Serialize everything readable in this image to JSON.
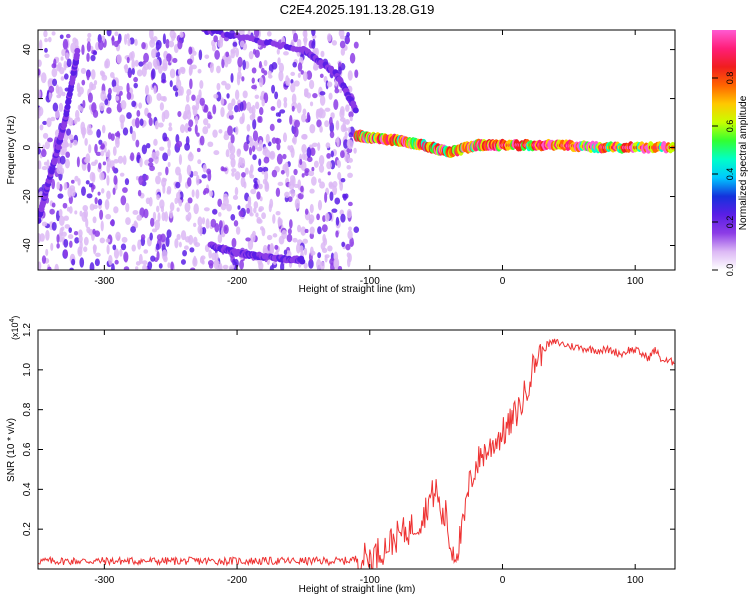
{
  "title": "C2E4.2025.191.13.28.G19",
  "chart_data": [
    {
      "type": "heatmap",
      "title": "C2E4.2025.191.13.28.G19",
      "xlabel": "Height of straight line (km)",
      "ylabel": "Frequency (Hz)",
      "xlim": [
        -350,
        130
      ],
      "ylim": [
        -50,
        48
      ],
      "x_ticks": [
        -300,
        -200,
        -100,
        0,
        100
      ],
      "x_tick_labels": [
        "-300",
        "-200",
        "-100",
        "0",
        "100"
      ],
      "y_ticks": [
        -40,
        -20,
        0,
        20,
        40
      ],
      "y_tick_labels": [
        "-40",
        "-20",
        "0",
        "20",
        "40"
      ],
      "colorbar": {
        "label": "Normalized spectral amplitude",
        "range": [
          0,
          1
        ],
        "ticks": [
          0.0,
          0.2,
          0.4,
          0.6,
          0.8
        ],
        "tick_labels": [
          "0.0",
          "0.2",
          "0.4",
          "0.6",
          "0.8"
        ],
        "colormap": [
          "#ffffff",
          "#dcb8f5",
          "#8c3ce6",
          "#5a1ee6",
          "#1432dc",
          "#00c8ff",
          "#00ffc8",
          "#32ff32",
          "#c8ff00",
          "#ffc800",
          "#ff6400",
          "#f01e1e",
          "#ff1e78",
          "#ff5ad2"
        ]
      },
      "features": [
        {
          "name": "scattered noise",
          "x_range": [
            -350,
            -110
          ],
          "y_range": [
            -50,
            48
          ],
          "amplitude": 0.1
        },
        {
          "name": "descending track upper",
          "points": [
            [
              -225,
              48
            ],
            [
              -150,
              40
            ],
            [
              -125,
              30
            ],
            [
              -110,
              15
            ]
          ],
          "amplitude": 0.2
        },
        {
          "name": "lower track",
          "points": [
            [
              -220,
              -40
            ],
            [
              -200,
              -43
            ],
            [
              -175,
              -45
            ],
            [
              -150,
              -46
            ]
          ],
          "amplitude": 0.2
        },
        {
          "name": "left edge track",
          "points": [
            [
              -350,
              -30
            ],
            [
              -340,
              -10
            ],
            [
              -330,
              10
            ],
            [
              -320,
              40
            ]
          ],
          "amplitude": 0.2
        },
        {
          "name": "main signal",
          "points": [
            [
              -110,
              5
            ],
            [
              -100,
              4
            ],
            [
              -80,
              3
            ],
            [
              -60,
              1
            ],
            [
              -40,
              -2
            ],
            [
              -20,
              1
            ],
            [
              0,
              1
            ],
            [
              40,
              1
            ],
            [
              80,
              0
            ],
            [
              130,
              0
            ]
          ],
          "amplitude": 0.8
        }
      ]
    },
    {
      "type": "line",
      "xlabel": "Height of straight line (km)",
      "ylabel": "SNR (10 * v/v)",
      "y_multiplier_label": "(x10",
      "y_multiplier_exponent": "4",
      "xlim": [
        -350,
        130
      ],
      "ylim": [
        0,
        1.2
      ],
      "x_ticks": [
        -300,
        -200,
        -100,
        0,
        100
      ],
      "x_tick_labels": [
        "-300",
        "-200",
        "-100",
        "0",
        "100"
      ],
      "y_ticks": [
        0.2,
        0.4,
        0.6,
        0.8,
        1.0,
        1.2
      ],
      "y_tick_labels": [
        "0.2",
        "0.4",
        "0.6",
        "0.8",
        "1.0",
        "1.2"
      ],
      "color": "#ee3333",
      "series": [
        {
          "x": [
            -350,
            -300,
            -250,
            -200,
            -150,
            -120,
            -100,
            -90,
            -80,
            -70,
            -60,
            -55,
            -50,
            -47,
            -45,
            -42,
            -40,
            -35,
            -30,
            -25,
            -20,
            -15,
            -10,
            -5,
            0,
            5,
            10,
            15,
            20,
            25,
            30,
            35,
            40,
            50,
            60,
            70,
            80,
            90,
            95,
            100,
            105,
            110,
            115,
            120,
            125,
            130
          ],
          "y": [
            0.04,
            0.04,
            0.04,
            0.04,
            0.04,
            0.04,
            0.06,
            0.1,
            0.16,
            0.2,
            0.26,
            0.35,
            0.4,
            0.3,
            0.25,
            0.28,
            0.12,
            0.08,
            0.2,
            0.42,
            0.52,
            0.58,
            0.6,
            0.65,
            0.68,
            0.72,
            0.78,
            0.84,
            0.95,
            1.05,
            1.1,
            1.13,
            1.14,
            1.12,
            1.11,
            1.1,
            1.1,
            1.08,
            1.1,
            1.1,
            1.08,
            1.06,
            1.1,
            1.05,
            1.04,
            1.04
          ]
        }
      ]
    }
  ]
}
